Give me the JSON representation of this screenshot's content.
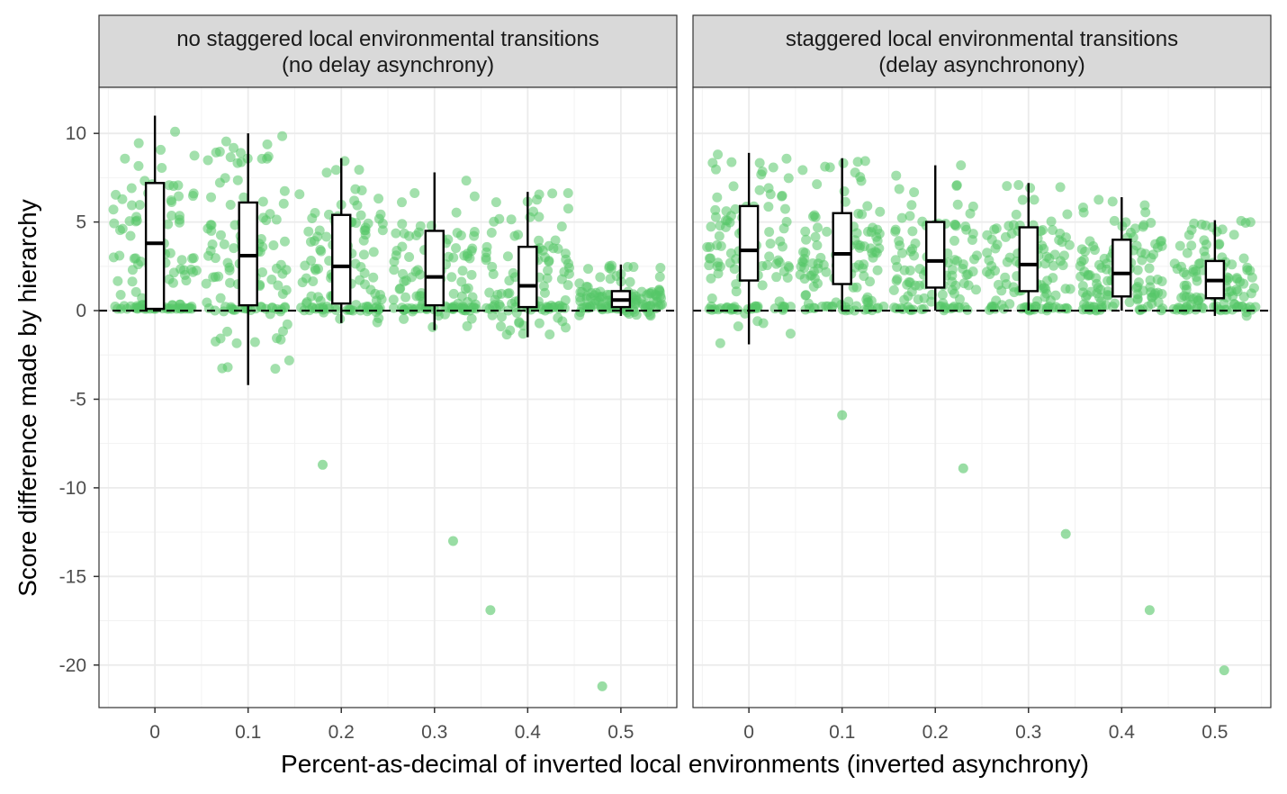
{
  "chart_data": {
    "type": "box-jitter",
    "ylabel": "Score difference made by hierarchy",
    "xlabel": "Percent-as-decimal of inverted local environments (inverted asynchrony)",
    "categories": [
      "0",
      "0.1",
      "0.2",
      "0.3",
      "0.4",
      "0.5"
    ],
    "x_values": [
      0,
      0.1,
      0.2,
      0.3,
      0.4,
      0.5
    ],
    "y_ticks": [
      10,
      5,
      0,
      -5,
      -10,
      -15,
      -20
    ],
    "y_tick_labels": [
      "10",
      "5",
      "0",
      "-5",
      "-10",
      "-15",
      "-20"
    ],
    "ylim": [
      -22.4,
      12.6
    ],
    "xlim": [
      -0.06,
      0.56
    ],
    "grid": true,
    "reference_line": 0,
    "point_color": "#55c667",
    "panels": [
      {
        "strip_line1": "no staggered local environmental transitions",
        "strip_line2": "(no delay asynchrony)",
        "boxes": [
          {
            "x": 0,
            "lower": 0.1,
            "q1": 0.1,
            "median": 3.8,
            "q3": 7.2,
            "upper": 11.0
          },
          {
            "x": 0.1,
            "lower": -4.2,
            "q1": 0.3,
            "median": 3.1,
            "q3": 6.1,
            "upper": 10.0
          },
          {
            "x": 0.2,
            "lower": -0.7,
            "q1": 0.4,
            "median": 2.5,
            "q3": 5.4,
            "upper": 8.6
          },
          {
            "x": 0.3,
            "lower": -1.1,
            "q1": 0.3,
            "median": 1.9,
            "q3": 4.5,
            "upper": 7.8
          },
          {
            "x": 0.4,
            "lower": -1.5,
            "q1": 0.2,
            "median": 1.4,
            "q3": 3.6,
            "upper": 6.7
          },
          {
            "x": 0.5,
            "lower": -0.3,
            "q1": 0.2,
            "median": 0.6,
            "q3": 1.1,
            "upper": 2.6
          }
        ],
        "outliers": [
          {
            "x": 0.18,
            "y": -8.7
          },
          {
            "x": 0.32,
            "y": -13.0
          },
          {
            "x": 0.36,
            "y": -16.9
          },
          {
            "x": 0.48,
            "y": -21.2
          }
        ]
      },
      {
        "strip_line1": "staggered local environmental transitions",
        "strip_line2": "(delay asynchronony)",
        "boxes": [
          {
            "x": 0,
            "lower": -1.9,
            "q1": 1.7,
            "median": 3.4,
            "q3": 5.9,
            "upper": 8.9
          },
          {
            "x": 0.1,
            "lower": 0.0,
            "q1": 1.5,
            "median": 3.2,
            "q3": 5.5,
            "upper": 8.6
          },
          {
            "x": 0.2,
            "lower": 0.0,
            "q1": 1.3,
            "median": 2.8,
            "q3": 5.0,
            "upper": 8.2
          },
          {
            "x": 0.3,
            "lower": 0.0,
            "q1": 1.1,
            "median": 2.6,
            "q3": 4.7,
            "upper": 7.2
          },
          {
            "x": 0.4,
            "lower": 0.0,
            "q1": 0.8,
            "median": 2.1,
            "q3": 4.0,
            "upper": 6.4
          },
          {
            "x": 0.5,
            "lower": -0.3,
            "q1": 0.7,
            "median": 1.7,
            "q3": 2.8,
            "upper": 5.1
          }
        ],
        "outliers": [
          {
            "x": 0.1,
            "y": -5.9
          },
          {
            "x": 0.23,
            "y": -8.9
          },
          {
            "x": 0.34,
            "y": -12.6
          },
          {
            "x": 0.43,
            "y": -16.9
          },
          {
            "x": 0.51,
            "y": -20.3
          }
        ]
      }
    ]
  }
}
